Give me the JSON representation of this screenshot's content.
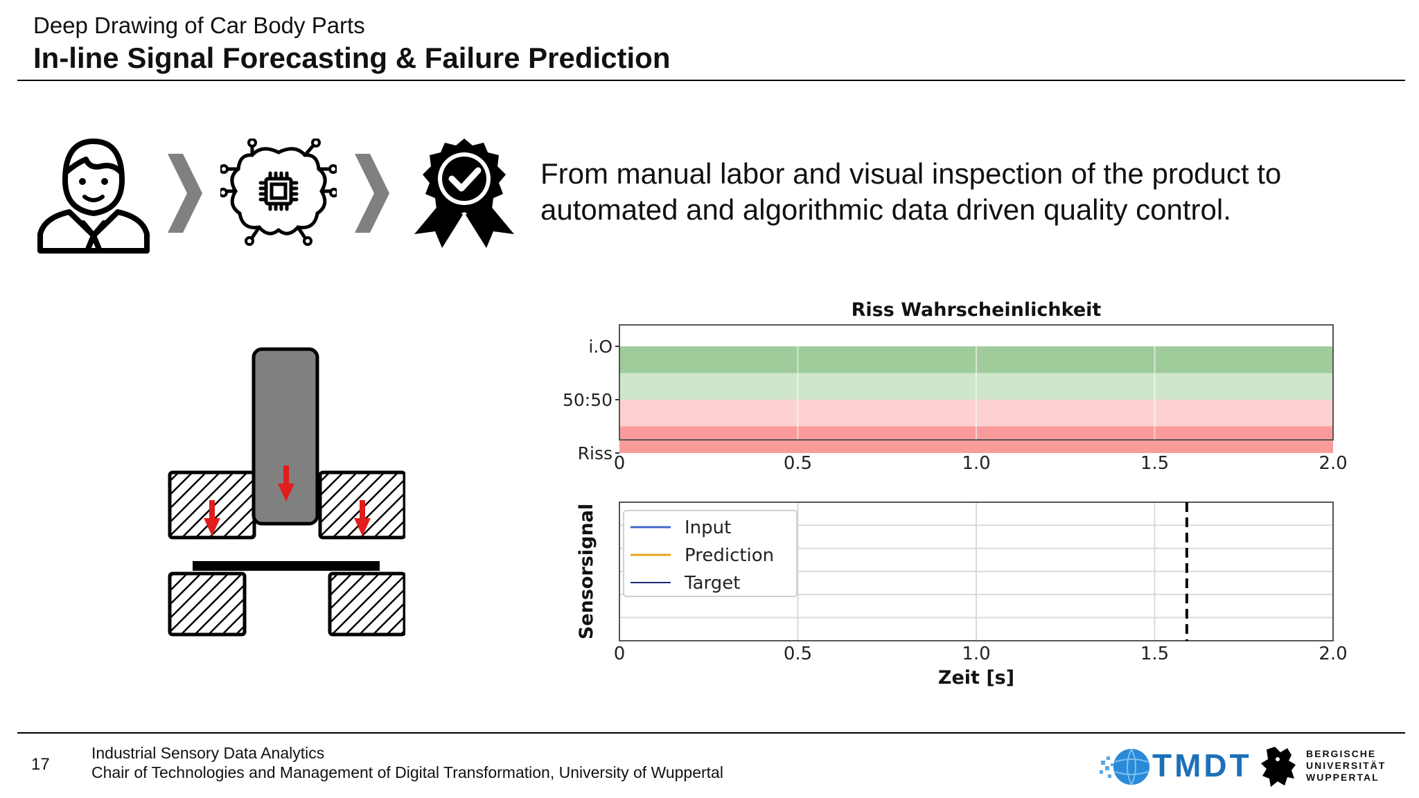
{
  "header": {
    "subtitle": "Deep Drawing of Car Body Parts",
    "title": "In-line Signal Forecasting & Failure Prediction"
  },
  "statement": "From manual labor and visual inspection of the product to automated and algorithmic data driven quality control.",
  "process_icons": [
    "worker-icon",
    "chevron-right-icon",
    "ai-brain-chip-icon",
    "chevron-right-icon",
    "quality-badge-check-icon"
  ],
  "footer": {
    "page_number": "17",
    "line1": "Industrial Sensory Data Analytics",
    "line2": "Chair of Technologies and Management of Digital Transformation, University of Wuppertal",
    "tmdt_logo_text": "TMDT",
    "university_lines": [
      "BERGISCHE",
      "UNIVERSITÄT",
      "WUPPERTAL"
    ]
  },
  "colors": {
    "band_io": "#9fcc9a",
    "band_io_light": "#cfe5cc",
    "band_riss_light": "#fdd1d3",
    "band_riss": "#fa9b9b",
    "input": "#4468c8",
    "prediction": "#e8a317",
    "target": "#1a2a7a",
    "arrow": "#e11d1d",
    "tmdt_blue": "#1c70b8"
  },
  "chart_data": [
    {
      "type": "area",
      "title": "Riss Wahrscheinlichkeit",
      "xlabel": "",
      "ylabel": "",
      "xlim": [
        0,
        2.0
      ],
      "x_ticks": [
        "0",
        "0.5",
        "1.0",
        "1.5",
        "2.0"
      ],
      "y_ticks": [
        "i.O",
        "50:50",
        "Riss"
      ],
      "bands": [
        "i.O",
        "i.O (light)",
        "Riss (light)",
        "Riss"
      ],
      "grid": true
    },
    {
      "type": "line",
      "title": "",
      "xlabel": "Zeit [s]",
      "ylabel": "Sensorsignal",
      "xlim": [
        0,
        2.0
      ],
      "x_ticks": [
        "0",
        "0.5",
        "1.0",
        "1.5",
        "2.0"
      ],
      "legend_position": "top-left",
      "series": [
        {
          "name": "Input",
          "values": []
        },
        {
          "name": "Prediction",
          "values": []
        },
        {
          "name": "Target",
          "values": []
        }
      ],
      "marker_x": 1.59,
      "grid": true
    }
  ]
}
